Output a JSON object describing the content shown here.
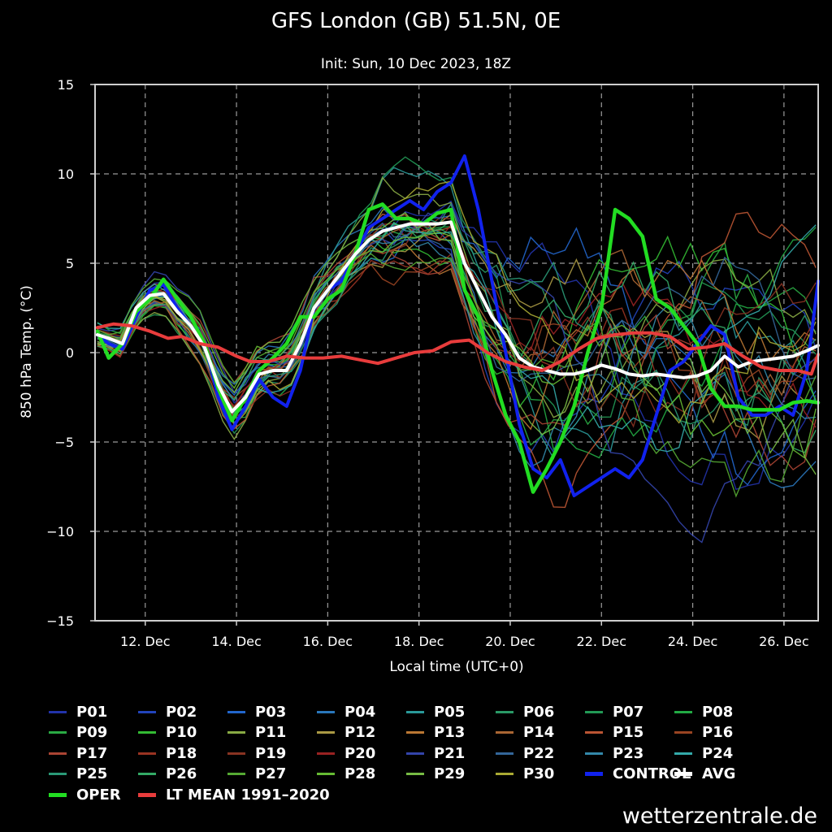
{
  "chart_data": {
    "type": "line",
    "title": "GFS London (GB) 51.5N, 0E",
    "subtitle": "Init: Sun, 10 Dec 2023, 18Z",
    "xlabel": "Local time (UTC+0)",
    "ylabel": "850 hPa Temp. (°C)",
    "ylim": [
      -15,
      15
    ],
    "yticks": [
      15,
      10,
      5,
      0,
      -5,
      -10,
      -15
    ],
    "xlim": [
      10.9,
      26.75
    ],
    "xticks": [
      {
        "day": 12,
        "label": "12. Dec"
      },
      {
        "day": 14,
        "label": "14. Dec"
      },
      {
        "day": 16,
        "label": "16. Dec"
      },
      {
        "day": 18,
        "label": "18. Dec"
      },
      {
        "day": 20,
        "label": "20. Dec"
      },
      {
        "day": 22,
        "label": "22. Dec"
      },
      {
        "day": 24,
        "label": "24. Dec"
      },
      {
        "day": 26,
        "label": "26. Dec"
      }
    ],
    "grid": true,
    "legend_position": "bottom",
    "series": [
      {
        "name": "OPER",
        "color": "#22dd22",
        "width": 4.5,
        "x": [
          10.95,
          11.2,
          11.5,
          11.8,
          12.1,
          12.4,
          12.7,
          13.0,
          13.3,
          13.6,
          13.9,
          14.2,
          14.5,
          14.8,
          15.1,
          15.4,
          15.7,
          16.0,
          16.3,
          16.6,
          16.9,
          17.2,
          17.5,
          17.8,
          18.1,
          18.4,
          18.7,
          19.0,
          19.3,
          19.6,
          19.9,
          20.2,
          20.5,
          20.8,
          21.1,
          21.4,
          21.7,
          22.0,
          22.3,
          22.6,
          22.9,
          23.2,
          23.5,
          23.8,
          24.1,
          24.4,
          24.7,
          25.0,
          25.3,
          25.6,
          25.9,
          26.2,
          26.5,
          26.75
        ],
        "y": [
          1.2,
          -0.3,
          0.5,
          2.3,
          3.0,
          4.1,
          3.0,
          2.0,
          0.5,
          -2.0,
          -3.8,
          -2.5,
          -1.0,
          -0.3,
          0.5,
          2.0,
          2.0,
          3.0,
          3.5,
          5.5,
          8.0,
          8.3,
          7.5,
          7.5,
          7.2,
          7.8,
          8.0,
          3.5,
          2.0,
          -1.0,
          -3.5,
          -5.0,
          -7.8,
          -6.5,
          -5.0,
          -3.0,
          0.0,
          2.5,
          8.0,
          7.5,
          6.5,
          3.0,
          2.5,
          1.5,
          0.5,
          -2.0,
          -3.0,
          -3.0,
          -3.2,
          -3.2,
          -3.2,
          -2.8,
          -2.7,
          -2.8
        ]
      },
      {
        "name": "CONTROL",
        "color": "#1122ee",
        "width": 4,
        "x": [
          10.95,
          11.2,
          11.5,
          11.8,
          12.1,
          12.4,
          12.7,
          13.0,
          13.3,
          13.6,
          13.9,
          14.2,
          14.5,
          14.8,
          15.1,
          15.4,
          15.7,
          16.0,
          16.3,
          16.6,
          16.9,
          17.2,
          17.5,
          17.8,
          18.1,
          18.4,
          18.7,
          19.0,
          19.3,
          19.6,
          19.9,
          20.2,
          20.5,
          20.8,
          21.1,
          21.4,
          21.7,
          22.0,
          22.3,
          22.6,
          22.9,
          23.2,
          23.5,
          23.8,
          24.1,
          24.4,
          24.7,
          25.0,
          25.3,
          25.6,
          25.9,
          26.2,
          26.5,
          26.75
        ],
        "y": [
          1.0,
          0.5,
          0.2,
          2.0,
          3.5,
          3.8,
          2.5,
          1.5,
          0.5,
          -2.5,
          -4.3,
          -3.0,
          -1.5,
          -2.5,
          -3.0,
          -1.0,
          2.5,
          3.5,
          4.0,
          5.5,
          7.0,
          7.5,
          8.0,
          8.5,
          8.0,
          9.0,
          9.5,
          11.0,
          8.0,
          4.0,
          0.0,
          -4.0,
          -6.5,
          -7.0,
          -6.0,
          -8.0,
          -7.5,
          -7.0,
          -6.5,
          -7.0,
          -6.0,
          -3.5,
          -1.0,
          -0.5,
          0.5,
          1.5,
          1.0,
          -2.5,
          -3.5,
          -3.5,
          -3.0,
          -3.5,
          -1.0,
          4.0
        ]
      },
      {
        "name": "AVG",
        "color": "#ffffff",
        "width": 4,
        "x": [
          10.95,
          11.2,
          11.5,
          11.8,
          12.1,
          12.4,
          12.7,
          13.0,
          13.3,
          13.6,
          13.9,
          14.2,
          14.5,
          14.8,
          15.1,
          15.4,
          15.7,
          16.0,
          16.3,
          16.6,
          16.9,
          17.2,
          17.5,
          17.8,
          18.1,
          18.4,
          18.7,
          19.0,
          19.3,
          19.6,
          19.9,
          20.2,
          20.5,
          20.8,
          21.1,
          21.4,
          21.7,
          22.0,
          22.3,
          22.6,
          22.9,
          23.2,
          23.5,
          23.8,
          24.1,
          24.4,
          24.7,
          25.0,
          25.3,
          25.6,
          25.9,
          26.2,
          26.5,
          26.75
        ],
        "y": [
          1.0,
          0.8,
          0.5,
          2.5,
          3.2,
          3.3,
          2.3,
          1.5,
          0.3,
          -1.8,
          -3.3,
          -2.5,
          -1.2,
          -1.0,
          -1.0,
          0.5,
          2.5,
          3.5,
          4.5,
          5.5,
          6.3,
          6.8,
          7.0,
          7.2,
          7.2,
          7.2,
          7.3,
          5.0,
          3.5,
          2.0,
          1.0,
          -0.3,
          -0.8,
          -1.0,
          -1.2,
          -1.2,
          -1.0,
          -0.7,
          -0.9,
          -1.2,
          -1.3,
          -1.2,
          -1.3,
          -1.4,
          -1.3,
          -1.0,
          -0.2,
          -0.8,
          -0.5,
          -0.4,
          -0.3,
          -0.2,
          0.1,
          0.4
        ]
      },
      {
        "name": "LT MEAN 1991–2020",
        "color": "#e83c3c",
        "width": 4,
        "x": [
          10.95,
          11.3,
          11.7,
          12.1,
          12.5,
          12.8,
          13.2,
          13.6,
          14.0,
          14.3,
          14.7,
          15.1,
          15.5,
          15.9,
          16.3,
          16.7,
          17.1,
          17.5,
          17.9,
          18.3,
          18.7,
          19.1,
          19.5,
          19.9,
          20.3,
          20.7,
          21.1,
          21.5,
          21.9,
          22.3,
          22.7,
          23.1,
          23.5,
          23.9,
          24.3,
          24.7,
          25.1,
          25.5,
          25.9,
          26.3,
          26.6,
          26.75
        ],
        "y": [
          1.4,
          1.6,
          1.5,
          1.2,
          0.8,
          0.9,
          0.5,
          0.3,
          -0.2,
          -0.5,
          -0.5,
          -0.2,
          -0.3,
          -0.3,
          -0.2,
          -0.4,
          -0.6,
          -0.3,
          0.0,
          0.1,
          0.6,
          0.7,
          0.0,
          -0.5,
          -0.8,
          -1.0,
          -0.5,
          0.2,
          0.8,
          1.0,
          1.1,
          1.1,
          0.9,
          0.2,
          0.3,
          0.5,
          -0.2,
          -0.8,
          -1.0,
          -1.0,
          -1.2,
          -0.1
        ]
      }
    ],
    "ensemble_members": [
      "P01",
      "P02",
      "P03",
      "P04",
      "P05",
      "P06",
      "P07",
      "P08",
      "P09",
      "P10",
      "P11",
      "P12",
      "P13",
      "P14",
      "P15",
      "P16",
      "P17",
      "P18",
      "P19",
      "P20",
      "P21",
      "P22",
      "P23",
      "P24",
      "P25",
      "P26",
      "P27",
      "P28",
      "P29",
      "P30"
    ],
    "ensemble_colors": [
      "#2233aa",
      "#2244bb",
      "#2266cc",
      "#2a77bb",
      "#2a9999",
      "#2a9966",
      "#229955",
      "#22aa44",
      "#2aaa44",
      "#33bb33",
      "#88aa44",
      "#aa9944",
      "#bb7733",
      "#aa6633",
      "#bb5533",
      "#994422",
      "#aa4433",
      "#993322",
      "#883322",
      "#992222",
      "#3344aa",
      "#336699",
      "#3388aa",
      "#33aaaa",
      "#2a9977",
      "#33aa66",
      "#55aa33",
      "#66bb33",
      "#77bb44",
      "#aaaa33"
    ]
  },
  "legend": {
    "members": [
      "P01",
      "P02",
      "P03",
      "P04",
      "P05",
      "P06",
      "P07",
      "P08",
      "P09",
      "P10",
      "P11",
      "P12",
      "P13",
      "P14",
      "P15",
      "P16",
      "P17",
      "P18",
      "P19",
      "P20",
      "P21",
      "P22",
      "P23",
      "P24",
      "P25",
      "P26",
      "P27",
      "P28",
      "P29",
      "P30"
    ],
    "control": "CONTROL",
    "avg": "AVG",
    "oper": "OPER",
    "lt_mean": "LT MEAN 1991–2020"
  },
  "brand": "wetterzentrale.de"
}
